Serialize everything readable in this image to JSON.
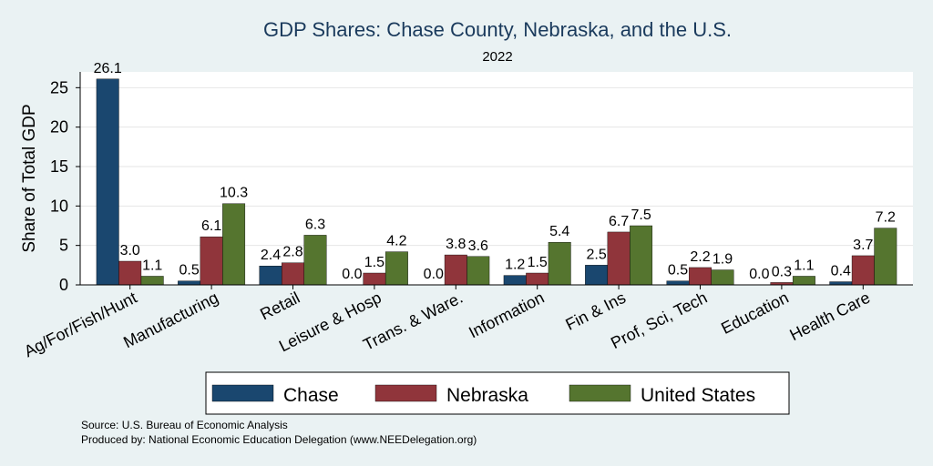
{
  "chart_data": {
    "type": "bar",
    "title": "GDP Shares: Chase County, Nebraska, and the U.S.",
    "subtitle": "2022",
    "ylabel": "Share of Total GDP",
    "xlabel": "",
    "ylim": [
      0,
      27
    ],
    "yticks": [
      0,
      5,
      10,
      15,
      20,
      25
    ],
    "grid": true,
    "legend_position": "bottom",
    "categories": [
      "Ag/For/Fish/Hunt",
      "Manufacturing",
      "Retail",
      "Leisure & Hosp",
      "Trans. & Ware.",
      "Information",
      "Fin & Ins",
      "Prof, Sci, Tech",
      "Education",
      "Health Care"
    ],
    "series": [
      {
        "name": "Chase",
        "color": "#1a476f",
        "values": [
          26.1,
          0.5,
          2.4,
          0.0,
          0.0,
          1.2,
          2.5,
          0.5,
          0.0,
          0.4
        ],
        "labels": [
          "26.1",
          "0.5",
          "2.4",
          "0.0",
          "0.0",
          "1.2",
          "2.5",
          "0.5",
          "0.0",
          "0.4"
        ]
      },
      {
        "name": "Nebraska",
        "color": "#90353b",
        "values": [
          3.0,
          6.1,
          2.8,
          1.5,
          3.8,
          1.5,
          6.7,
          2.2,
          0.3,
          3.7
        ],
        "labels": [
          "3.0",
          "6.1",
          "2.8",
          "1.5",
          "3.8",
          "1.5",
          "6.7",
          "2.2",
          "0.3",
          "3.7"
        ]
      },
      {
        "name": "United States",
        "color": "#55752f",
        "values": [
          1.1,
          10.3,
          6.3,
          4.2,
          3.6,
          5.4,
          7.5,
          1.9,
          1.1,
          7.2
        ],
        "labels": [
          "1.1",
          "10.3",
          "6.3",
          "4.2",
          "3.6",
          "5.4",
          "7.5",
          "1.9",
          "1.1",
          "7.2"
        ]
      }
    ]
  },
  "footer": {
    "source": "Source: U.S. Bureau of Economic Analysis",
    "produced_by": "Produced by: National Economic Education Delegation (www.NEEDelegation.org)"
  }
}
